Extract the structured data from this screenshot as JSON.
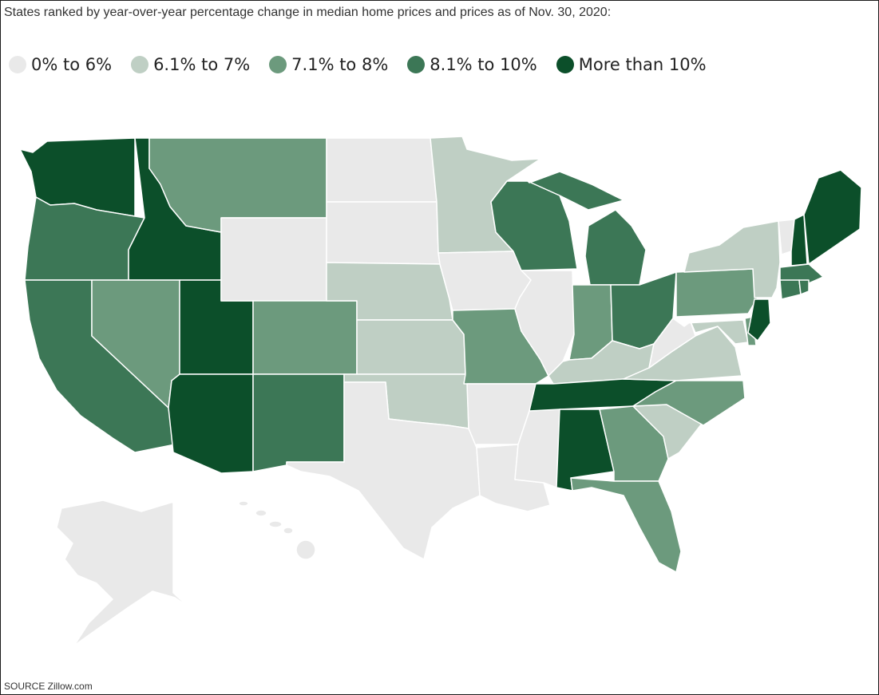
{
  "title": "States ranked by year-over-year percentage change in median home prices and prices as of Nov. 30, 2020:",
  "source": "SOURCE Zillow.com",
  "legend": [
    {
      "label": "0% to 6%",
      "color": "#e9e9e9"
    },
    {
      "label": "6.1% to 7%",
      "color": "#bfcfc4"
    },
    {
      "label": "7.1% to 8%",
      "color": "#6c9a7d"
    },
    {
      "label": "8.1% to 10%",
      "color": "#3c7756"
    },
    {
      "label": "More than 10%",
      "color": "#0c4f2a"
    }
  ],
  "map_data": {
    "WA": 4,
    "OR": 3,
    "CA": 3,
    "ID": 4,
    "NV": 2,
    "UT": 4,
    "AZ": 4,
    "MT": 2,
    "WY": 0,
    "CO": 2,
    "NM": 3,
    "ND": 0,
    "SD": 0,
    "NE": 1,
    "KS": 1,
    "OK": 1,
    "TX": 0,
    "MN": 1,
    "IA": 0,
    "MO": 2,
    "AR": 0,
    "LA": 0,
    "WI": 3,
    "IL": 0,
    "MI": 3,
    "IN": 2,
    "OH": 3,
    "KY": 1,
    "TN": 4,
    "MS": 0,
    "AL": 4,
    "GA": 2,
    "FL": 2,
    "SC": 1,
    "NC": 2,
    "VA": 1,
    "WV": 0,
    "PA": 2,
    "NY": 1,
    "VT": 0,
    "NH": 4,
    "ME": 4,
    "MA": 3,
    "CT": 3,
    "RI": 3,
    "NJ": 4,
    "DE": 2,
    "MD": 1,
    "AK": 0,
    "HI": 0
  }
}
